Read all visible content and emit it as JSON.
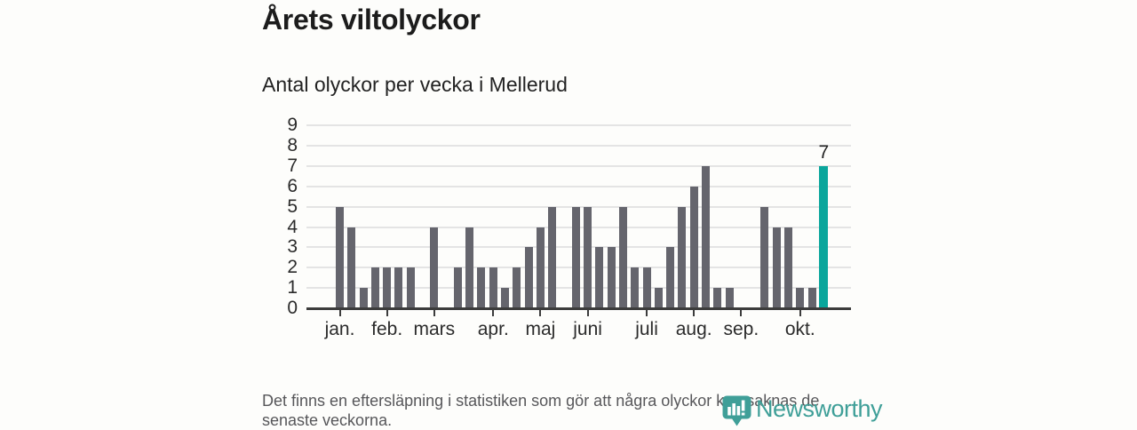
{
  "chart_data": {
    "type": "bar",
    "title": "Årets viltolyckor",
    "subtitle": "Antal olyckor per vecka i Mellerud",
    "xlabel": "",
    "ylabel": "",
    "x_unit": "vecka",
    "categories_note": "weekly bars, week 1 of January through mid October",
    "values": [
      5,
      4,
      1,
      2,
      2,
      2,
      2,
      0,
      4,
      0,
      2,
      4,
      2,
      2,
      1,
      2,
      3,
      4,
      5,
      0,
      5,
      5,
      3,
      3,
      5,
      2,
      2,
      1,
      3,
      5,
      6,
      7,
      1,
      1,
      0,
      0,
      5,
      4,
      4,
      1,
      1,
      7
    ],
    "highlight_index": 41,
    "highlight_value_label": "7",
    "ylim": [
      0,
      9
    ],
    "yticks": [
      "0",
      "1",
      "2",
      "3",
      "4",
      "5",
      "6",
      "7",
      "8",
      "9"
    ],
    "xticks": [
      {
        "index": 0,
        "label": "jan."
      },
      {
        "index": 4,
        "label": "feb."
      },
      {
        "index": 8,
        "label": "mars"
      },
      {
        "index": 13,
        "label": "apr."
      },
      {
        "index": 17,
        "label": "maj"
      },
      {
        "index": 21,
        "label": "juni"
      },
      {
        "index": 26,
        "label": "juli"
      },
      {
        "index": 30,
        "label": "aug."
      },
      {
        "index": 34,
        "label": "sep."
      },
      {
        "index": 39,
        "label": "okt."
      }
    ],
    "grid": true,
    "legend": false,
    "colors": {
      "bar": "#65656d",
      "highlight": "#0aa69c",
      "grid": "#e4e4e4",
      "axis": "#3c3c3c",
      "text": "#2b2b2b"
    }
  },
  "footer": {
    "note": "Det finns en eftersläpning i statistiken som gör att några olyckor kan saknas de senaste veckorna."
  },
  "logo": {
    "text": "Newsworthy",
    "color": "#3f9f98",
    "icon": "newsworthy-pin-chart-icon"
  }
}
